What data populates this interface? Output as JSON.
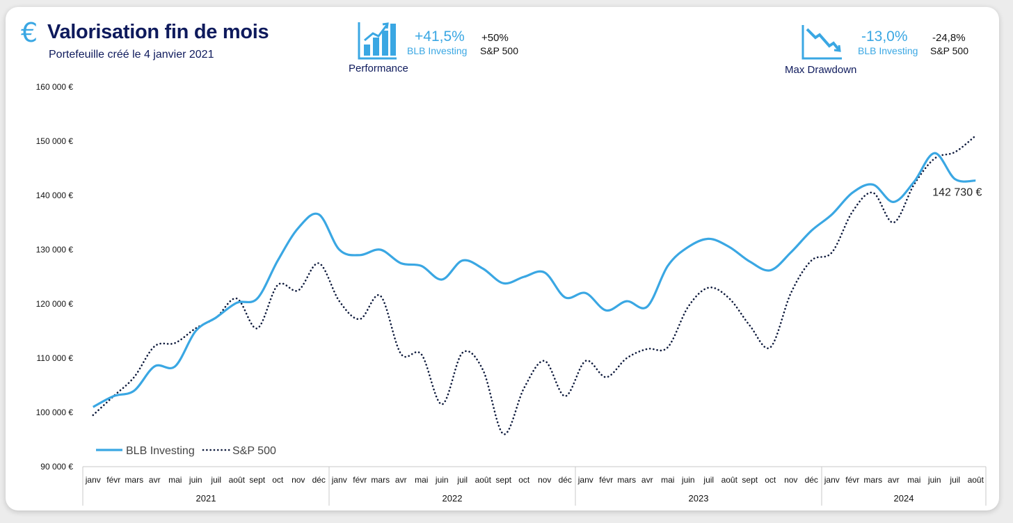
{
  "header": {
    "currency_icon": "euro-icon",
    "title": "Valorisation fin de mois",
    "subtitle": "Portefeuille créé le 4 janvier 2021"
  },
  "performance": {
    "icon": "bar-chart-up-icon",
    "blb_value": "+41,5%",
    "blb_label": "BLB Investing",
    "sp_value": "+50%",
    "sp_label": "S&P 500",
    "caption": "Performance"
  },
  "drawdown": {
    "icon": "chart-down-icon",
    "blb_value": "-13,0%",
    "blb_label": "BLB Investing",
    "sp_value": "-24,8%",
    "sp_label": "S&P 500",
    "caption": "Max Drawdown"
  },
  "colors": {
    "blb": "#3aa7e3",
    "sp": "#0e1a3c",
    "title": "#0e1a5c"
  },
  "chart_data": {
    "type": "line",
    "ylim": [
      90000,
      160000
    ],
    "ytick_values": [
      90000,
      100000,
      110000,
      120000,
      130000,
      140000,
      150000,
      160000
    ],
    "ytick_labels": [
      "90 000 €",
      "100 000 €",
      "110 000 €",
      "120 000 €",
      "130 000 €",
      "140 000 €",
      "150 000 €",
      "160 000 €"
    ],
    "categories": [
      "janv",
      "févr",
      "mars",
      "avr",
      "mai",
      "juin",
      "juil",
      "août",
      "sept",
      "oct",
      "nov",
      "déc",
      "janv",
      "févr",
      "mars",
      "avr",
      "mai",
      "juin",
      "juil",
      "août",
      "sept",
      "oct",
      "nov",
      "déc",
      "janv",
      "févr",
      "mars",
      "avr",
      "mai",
      "juin",
      "juil",
      "août",
      "sept",
      "oct",
      "nov",
      "déc",
      "janv",
      "févr",
      "mars",
      "avr",
      "mai",
      "juin",
      "juil",
      "août"
    ],
    "years": [
      {
        "label": "2021",
        "months": 12
      },
      {
        "label": "2022",
        "months": 12
      },
      {
        "label": "2023",
        "months": 12
      },
      {
        "label": "2024",
        "months": 8
      }
    ],
    "series": [
      {
        "name": "BLB Investing",
        "style": "solid",
        "values": [
          101000,
          103000,
          104000,
          108500,
          108500,
          115000,
          117500,
          120200,
          121000,
          128000,
          134000,
          136500,
          130000,
          129000,
          130000,
          127500,
          127000,
          124500,
          128000,
          126500,
          123800,
          125000,
          125800,
          121200,
          122000,
          118800,
          120500,
          119500,
          127000,
          130500,
          132000,
          130500,
          127800,
          126200,
          129500,
          133500,
          136500,
          140500,
          142000,
          138800,
          142500,
          147800,
          143000,
          142730
        ]
      },
      {
        "name": "S&P 500",
        "style": "dotted",
        "values": [
          99500,
          103000,
          106500,
          112200,
          112800,
          115500,
          117500,
          121000,
          115500,
          123500,
          122500,
          127500,
          120500,
          117200,
          121500,
          110800,
          110700,
          101500,
          111000,
          107800,
          96000,
          104500,
          109500,
          103000,
          109500,
          106500,
          110000,
          111700,
          112000,
          119500,
          123000,
          121000,
          116000,
          112000,
          122000,
          128000,
          129500,
          137000,
          140500,
          135000,
          142000,
          146800,
          148000,
          151000
        ]
      }
    ],
    "annotations": [
      {
        "series": "BLB Investing",
        "text": "142 730 €"
      }
    ],
    "legend_position": "bottom-left",
    "grid": false
  }
}
